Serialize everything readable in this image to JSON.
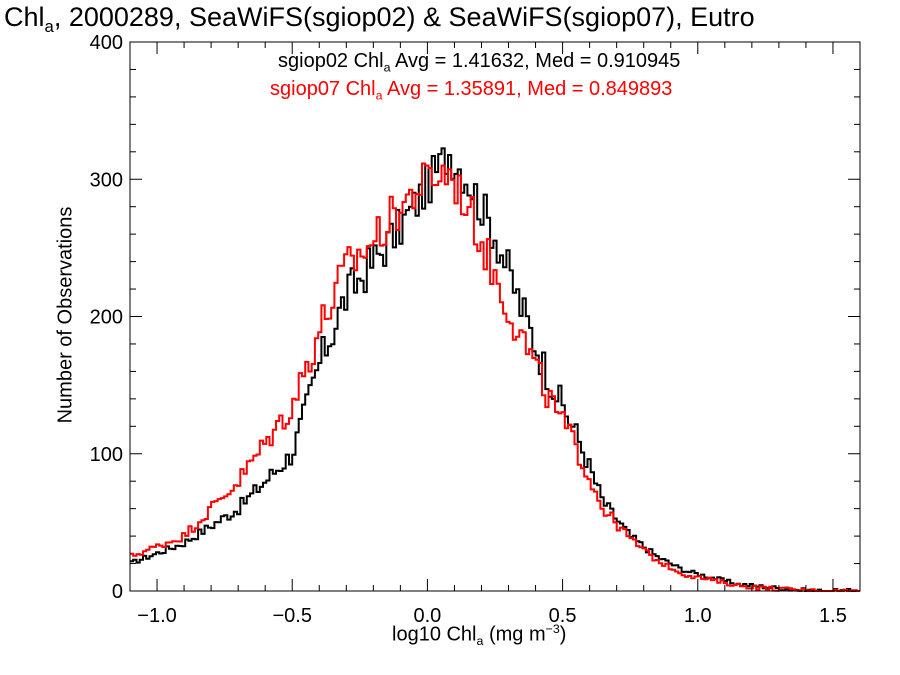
{
  "chart_data": {
    "type": "step-histogram",
    "title": {
      "prefix": "Chl",
      "sub": "a",
      "rest": ", 2000289, SeaWiFS(sgiop02) & SeaWiFS(sgiop07), Eutro"
    },
    "xlabel": {
      "prefix": "log10 Chl",
      "sub": "a",
      "mid": " (mg m",
      "sup": "−3",
      "suffix": ")"
    },
    "ylabel": "Number of Observations",
    "xlim": [
      -1.1,
      1.6
    ],
    "ylim": [
      0,
      400
    ],
    "xticks": [
      -1.0,
      -0.5,
      0.0,
      0.5,
      1.0,
      1.5
    ],
    "xtick_labels": [
      "−1.0",
      "−0.5",
      "0.0",
      "0.5",
      "1.0",
      "1.5"
    ],
    "yticks": [
      0,
      100,
      200,
      300,
      400
    ],
    "ytick_labels": [
      "0",
      "100",
      "200",
      "300",
      "400"
    ],
    "series": [
      {
        "name": "sgiop02",
        "color": "#000000",
        "stats": {
          "prefix": "sgiop02 Chl",
          "sub": "a",
          "rest": " Avg = 1.41632, Med = 0.910945"
        },
        "x": [
          -1.1,
          -0.9,
          -0.7,
          -0.5,
          -0.4,
          -0.3,
          -0.2,
          -0.1,
          0.0,
          0.08,
          0.15,
          0.25,
          0.35,
          0.45,
          0.55,
          0.65,
          0.75,
          0.85,
          0.95,
          1.05,
          1.15,
          1.25,
          1.35,
          1.45,
          1.55
        ],
        "y": [
          20,
          35,
          60,
          100,
          165,
          215,
          240,
          265,
          295,
          320,
          300,
          260,
          205,
          155,
          115,
          65,
          40,
          25,
          15,
          10,
          5,
          3,
          1,
          0,
          0
        ]
      },
      {
        "name": "sgiop07",
        "color": "#ff0000",
        "stats": {
          "prefix": "sgiop07 Chl",
          "sub": "a",
          "rest": " Avg = 1.35891, Med = 0.849893"
        },
        "x": [
          -1.1,
          -0.9,
          -0.7,
          -0.5,
          -0.4,
          -0.3,
          -0.2,
          -0.1,
          0.0,
          0.08,
          0.15,
          0.25,
          0.35,
          0.45,
          0.55,
          0.65,
          0.75,
          0.85,
          0.95,
          1.05,
          1.15,
          1.25,
          1.35,
          1.45,
          1.55
        ],
        "y": [
          25,
          40,
          80,
          135,
          190,
          235,
          255,
          280,
          300,
          305,
          280,
          230,
          185,
          140,
          105,
          60,
          38,
          22,
          12,
          8,
          4,
          2,
          1,
          0,
          0
        ]
      }
    ]
  }
}
